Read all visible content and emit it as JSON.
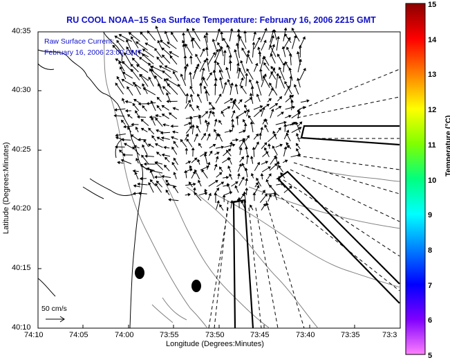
{
  "title": "RU COOL  NOAA–15  Sea Surface Temperature:  February 16, 2006 2215 GMT",
  "legend": {
    "line1": "Raw Surface Current:",
    "line2": "February 16, 2006 23:00 GMT"
  },
  "x_axis": {
    "label": "Longitude (Degrees:Minutes)",
    "ticks": [
      "74:10",
      "74:05",
      "74:00",
      "73:55",
      "73:50",
      "73:45",
      "73:40",
      "73:35",
      "73:3"
    ]
  },
  "y_axis": {
    "label": "Latitude (Degrees:Minutes)",
    "ticks": [
      "40:35",
      "40:30",
      "40:25",
      "40:20",
      "40:15",
      "40:10"
    ]
  },
  "colorbar": {
    "label": "Temperature (°C)",
    "ticks": [
      "15",
      "14",
      "13",
      "12",
      "11",
      "10",
      "9",
      "8",
      "7",
      "6",
      "5"
    ],
    "colors": [
      "#8b0000",
      "#ff0000",
      "#ff8000",
      "#ffff00",
      "#80ff00",
      "#00ff80",
      "#00ffff",
      "#0080ff",
      "#0000ff",
      "#8000ff",
      "#ff80ff"
    ]
  },
  "scale": {
    "label": "50 cm/s"
  },
  "colors": {
    "title": "#1010c8",
    "arrows": "#000000",
    "contours": "#808080"
  }
}
